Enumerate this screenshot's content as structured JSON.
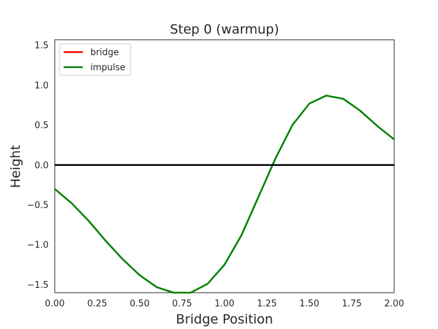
{
  "chart_data": {
    "type": "line",
    "title": "Step 0 (warmup)",
    "xlabel": "Bridge Position",
    "ylabel": "Height",
    "xlim": [
      0.0,
      2.0
    ],
    "ylim": [
      -1.6,
      1.57
    ],
    "xticks": [
      0.0,
      0.25,
      0.5,
      0.75,
      1.0,
      1.25,
      1.5,
      1.75,
      2.0
    ],
    "xtick_labels": [
      "0.00",
      "0.25",
      "0.50",
      "0.75",
      "1.00",
      "1.25",
      "1.50",
      "1.75",
      "2.00"
    ],
    "yticks": [
      -1.5,
      -1.0,
      -0.5,
      0.0,
      0.5,
      1.0,
      1.5
    ],
    "ytick_labels": [
      "−1.5",
      "−1.0",
      "−0.5",
      "0.0",
      "0.5",
      "1.0",
      "1.5"
    ],
    "grid": false,
    "legend_position": "top-left",
    "series": [
      {
        "name": "bridge",
        "color": "#ff0000",
        "x": [],
        "y": []
      },
      {
        "name": "impulse",
        "color": "#008000",
        "x": [
          0.0,
          0.1,
          0.2,
          0.3,
          0.4,
          0.5,
          0.6,
          0.7,
          0.8,
          0.9,
          1.0,
          1.1,
          1.2,
          1.3,
          1.4,
          1.5,
          1.6,
          1.7,
          1.8,
          1.9,
          2.0
        ],
        "y": [
          -0.3,
          -0.48,
          -0.7,
          -0.95,
          -1.18,
          -1.38,
          -1.53,
          -1.6,
          -1.6,
          -1.49,
          -1.25,
          -0.88,
          -0.4,
          0.08,
          0.5,
          0.77,
          0.87,
          0.83,
          0.68,
          0.49,
          0.32
        ]
      },
      {
        "name": "",
        "color": "#000000",
        "x": [
          0.0,
          2.0
        ],
        "y": [
          0.0,
          0.0
        ]
      }
    ]
  }
}
